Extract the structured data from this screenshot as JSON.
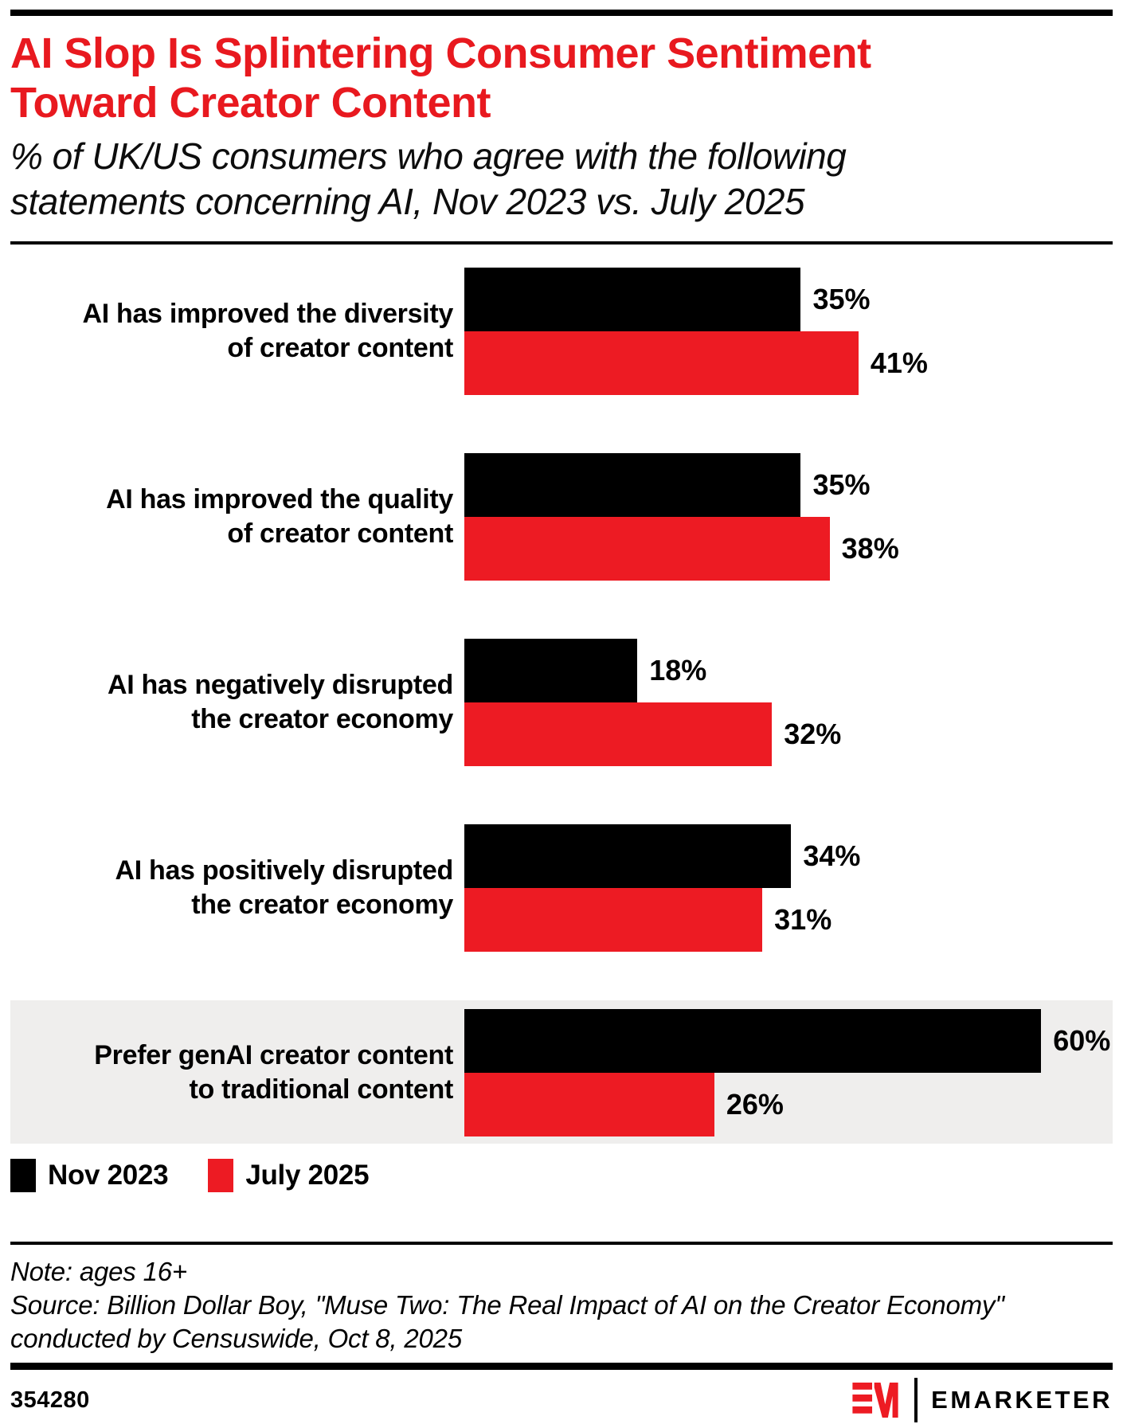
{
  "header": {
    "title_lines": [
      "AI Slop Is Splintering Consumer Sentiment",
      "Toward Creator Content"
    ],
    "subtitle_lines": [
      "% of UK/US consumers who agree with the following",
      "statements concerning AI, Nov 2023 vs. July 2025"
    ]
  },
  "colors": {
    "accent_red": "#E8191F",
    "bar_black": "#000000",
    "bar_red": "#ED1B23",
    "highlight_band": "#EFEEED"
  },
  "chart": {
    "rows": [
      {
        "label_lines": [
          "AI has improved the diversity",
          "of creator content"
        ],
        "value_labels": [
          "35%",
          "41%"
        ]
      },
      {
        "label_lines": [
          "AI has improved the quality",
          "of creator content"
        ],
        "value_labels": [
          "35%",
          "38%"
        ]
      },
      {
        "label_lines": [
          "AI has negatively disrupted",
          "the creator economy"
        ],
        "value_labels": [
          "18%",
          "32%"
        ]
      },
      {
        "label_lines": [
          "AI has positively disrupted",
          "the creator economy"
        ],
        "value_labels": [
          "34%",
          "31%"
        ]
      },
      {
        "label_lines": [
          "Prefer genAI creator content",
          "to traditional content"
        ],
        "value_labels": [
          "60%",
          "26%"
        ]
      }
    ]
  },
  "chart_data": {
    "type": "bar",
    "orientation": "horizontal",
    "title": "AI Slop Is Splintering Consumer Sentiment Toward Creator Content",
    "subtitle": "% of UK/US consumers who agree with the following statements concerning AI, Nov 2023 vs. July 2025",
    "categories": [
      "AI has improved the diversity of creator content",
      "AI has improved the quality of creator content",
      "AI has negatively disrupted the creator economy",
      "AI has positively disrupted the creator economy",
      "Prefer genAI creator content to traditional content"
    ],
    "series": [
      {
        "name": "Nov 2023",
        "color": "#000000",
        "values": [
          35,
          35,
          18,
          34,
          60
        ]
      },
      {
        "name": "July 2025",
        "color": "#ED1B23",
        "values": [
          41,
          38,
          32,
          31,
          26
        ]
      }
    ],
    "unit": "%",
    "xlim": [
      0,
      62
    ],
    "grid": false,
    "legend_position": "bottom",
    "highlighted_category_index": 4
  },
  "legend": {
    "items": [
      {
        "label": "Nov 2023",
        "color": "#000000"
      },
      {
        "label": "July 2025",
        "color": "#ED1B23"
      }
    ]
  },
  "footer": {
    "note": "Note: ages 16+",
    "source_lines": [
      "Source: Billion Dollar Boy, \"Muse Two: The Real Impact of AI on the Creator Economy\"",
      "conducted by Censuswide, Oct 8, 2025"
    ],
    "chart_id": "354280",
    "brand_name": "EMARKETER"
  }
}
